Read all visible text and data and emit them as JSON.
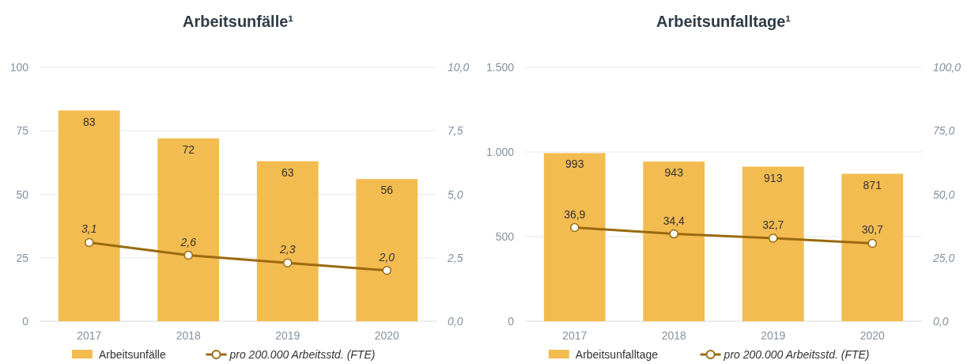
{
  "chart_data": [
    {
      "type": "bar",
      "title": "Arbeitsunfälle¹",
      "categories": [
        "2017",
        "2018",
        "2019",
        "2020"
      ],
      "series": [
        {
          "name": "Arbeitsunfälle",
          "color": "#f3bc50",
          "values": [
            83,
            72,
            63,
            56
          ],
          "value_labels": [
            "83",
            "72",
            "63",
            "56"
          ]
        },
        {
          "name": "pro 200.000 Arbeitsstd. (FTE)",
          "type": "line",
          "axis": "y2",
          "color": "#9a6a10",
          "values": [
            3.1,
            2.6,
            2.3,
            2.0
          ],
          "value_labels": [
            "3,1",
            "2,6",
            "2,3",
            "2,0"
          ]
        }
      ],
      "ylim": [
        0,
        100
      ],
      "yticks": [
        0,
        25,
        50,
        75,
        100
      ],
      "y2lim": [
        0,
        10
      ],
      "y2ticks": [
        {
          "value": 0,
          "label": "0,0"
        },
        {
          "value": 2.5,
          "label": "2,5"
        },
        {
          "value": 5,
          "label": "5,0"
        },
        {
          "value": 7.5,
          "label": "7,5"
        },
        {
          "value": 10,
          "label": "10,0"
        }
      ],
      "grid": "y",
      "legend": "bottom",
      "marker": "circle"
    },
    {
      "type": "bar",
      "title": "Arbeitsunfalltage¹",
      "categories": [
        "2017",
        "2018",
        "2019",
        "2020"
      ],
      "series": [
        {
          "name": "Arbeitsunfalltage",
          "color": "#f3bc50",
          "values": [
            993,
            943,
            913,
            871
          ],
          "value_labels": [
            "993",
            "943",
            "913",
            "871"
          ]
        },
        {
          "name": "pro 200.000 Arbeitsstd. (FTE)",
          "type": "line",
          "axis": "y2",
          "color": "#9a6a10",
          "values": [
            36.9,
            34.4,
            32.7,
            30.7
          ],
          "value_labels": [
            "36,9",
            "34,4",
            "32,7",
            "30,7"
          ]
        }
      ],
      "ylim": [
        0,
        1500
      ],
      "yticks": [
        0,
        500,
        {
          "value": 1000,
          "label": "1.000"
        },
        {
          "value": 1500,
          "label": "1.500"
        }
      ],
      "y2lim": [
        0,
        100
      ],
      "y2ticks": [
        {
          "value": 0,
          "label": "0,0"
        },
        {
          "value": 25,
          "label": "25,0"
        },
        {
          "value": 50,
          "label": "50,0"
        },
        {
          "value": 75,
          "label": "75,0"
        },
        {
          "value": 100,
          "label": "100,0"
        }
      ],
      "grid": "y",
      "legend": "bottom",
      "marker": "circle"
    }
  ]
}
